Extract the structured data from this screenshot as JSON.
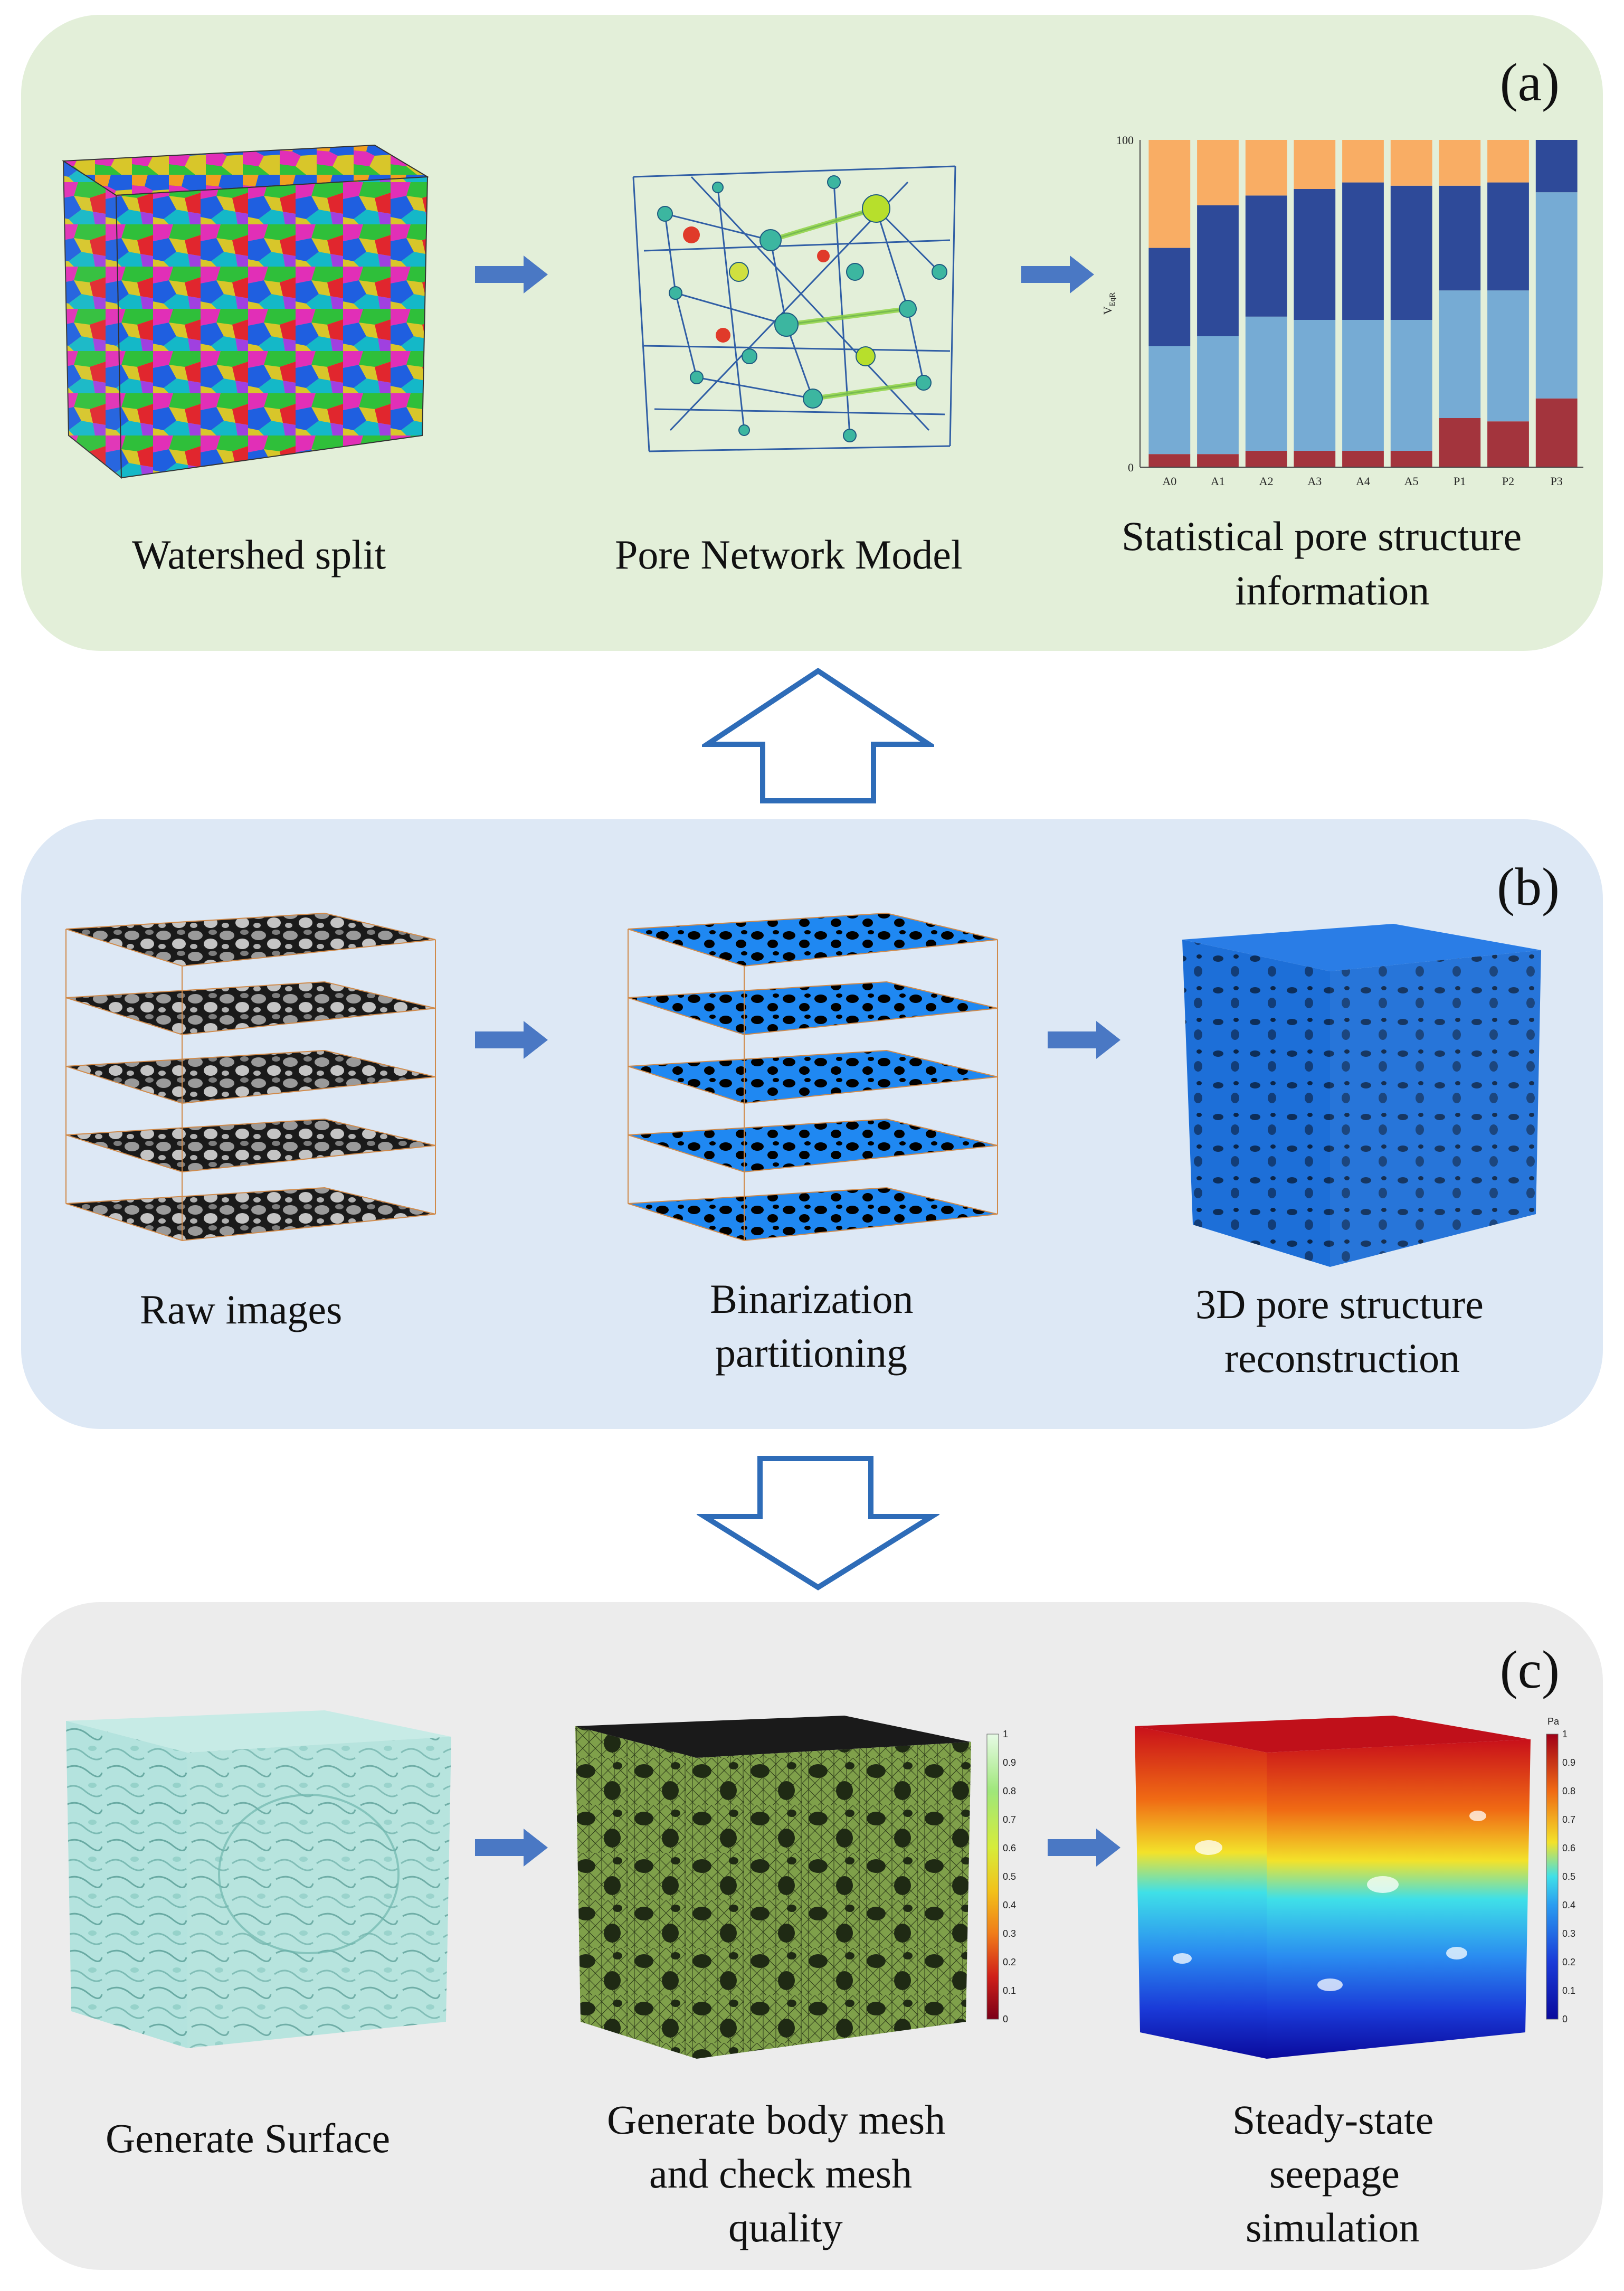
{
  "panels": {
    "a": {
      "tag": "(a)",
      "captions": {
        "watershed": "Watershed split",
        "pnm": "Pore Network Model",
        "stats_line1": "Statistical pore structure",
        "stats_line2": "information"
      }
    },
    "b": {
      "tag": "(b)",
      "captions": {
        "raw": "Raw images",
        "bin_line1": "Binarization",
        "bin_line2": "partitioning",
        "recon_line1": "3D pore structure",
        "recon_line2": "reconstruction"
      }
    },
    "c": {
      "tag": "(c)",
      "captions": {
        "surface": "Generate Surface",
        "mesh_line1": "Generate body mesh",
        "mesh_line2": "and check mesh",
        "mesh_line3": "quality",
        "seep_line1": "Steady-state",
        "seep_line2": "seepage",
        "seep_line3": "simulation"
      },
      "mesh_colorbar": {
        "ticks": [
          "1",
          "0.9",
          "0.8",
          "0.7",
          "0.6",
          "0.5",
          "0.4",
          "0.3",
          "0.2",
          "0.1",
          "0"
        ]
      },
      "seep_colorbar": {
        "unit": "Pa",
        "ticks": [
          "1",
          "0.9",
          "0.8",
          "0.7",
          "0.6",
          "0.5",
          "0.4",
          "0.3",
          "0.2",
          "0.1",
          "0"
        ]
      }
    }
  },
  "colors": {
    "panel_a_bg": "#e3efd9",
    "panel_b_bg": "#dde8f5",
    "panel_c_bg": "#ececec",
    "arrow_blue": "#4a78c4",
    "hollow_arrow_stroke": "#2e6cb8"
  },
  "chart_data": {
    "type": "bar",
    "stacked": true,
    "categories": [
      "A0",
      "A1",
      "A2",
      "A3",
      "A4",
      "A5",
      "P1",
      "P2",
      "P3"
    ],
    "ylabel": "V",
    "ylabel_sub": "EqR",
    "ylim": [
      0,
      100
    ],
    "yticks": [
      "0",
      "100"
    ],
    "series": [
      {
        "color": "#a3343d",
        "values": [
          4,
          4,
          5,
          5,
          5,
          5,
          15,
          14,
          21
        ]
      },
      {
        "color": "#76abd4",
        "values": [
          33,
          36,
          41,
          40,
          40,
          40,
          39,
          40,
          63
        ]
      },
      {
        "color": "#2e4a99",
        "values": [
          30,
          40,
          37,
          40,
          42,
          41,
          32,
          33,
          16
        ]
      },
      {
        "color": "#f9ad64",
        "values": [
          33,
          20,
          17,
          15,
          13,
          14,
          14,
          13,
          0
        ]
      }
    ]
  }
}
